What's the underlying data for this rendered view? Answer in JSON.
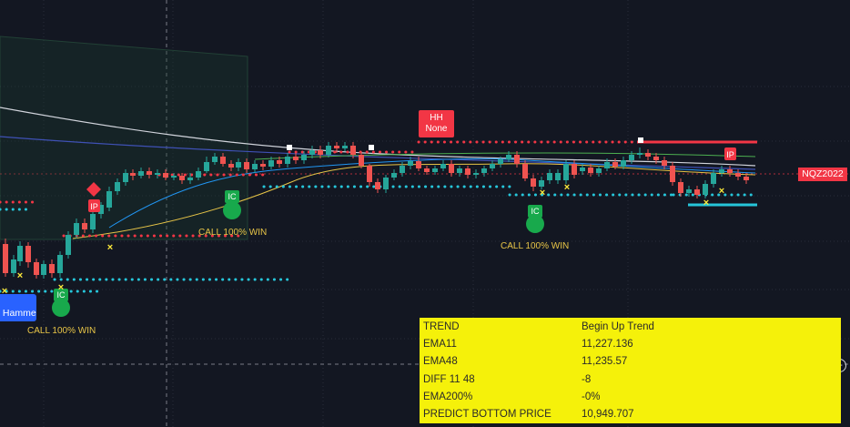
{
  "chart_data": {
    "type": "candlestick",
    "symbol": "NQZ2022",
    "candles": [
      [
        0,
        268,
        300,
        262,
        304,
        "d"
      ],
      [
        1,
        300,
        285,
        280,
        304,
        "u"
      ],
      [
        2,
        287,
        270,
        265,
        292,
        "u"
      ],
      [
        3,
        270,
        288,
        266,
        294,
        "d"
      ],
      [
        4,
        288,
        302,
        284,
        306,
        "d"
      ],
      [
        5,
        302,
        290,
        286,
        306,
        "u"
      ],
      [
        6,
        290,
        300,
        285,
        305,
        "d"
      ],
      [
        7,
        300,
        280,
        276,
        305,
        "u"
      ],
      [
        8,
        280,
        258,
        254,
        284,
        "u"
      ],
      [
        9,
        258,
        245,
        240,
        262,
        "u"
      ],
      [
        10,
        245,
        252,
        240,
        256,
        "d"
      ],
      [
        11,
        252,
        235,
        231,
        256,
        "u"
      ],
      [
        12,
        235,
        225,
        222,
        240,
        "u"
      ],
      [
        13,
        228,
        210,
        205,
        232,
        "u"
      ],
      [
        14,
        210,
        200,
        196,
        214,
        "u"
      ],
      [
        15,
        200,
        190,
        186,
        204,
        "u"
      ],
      [
        16,
        190,
        193,
        186,
        198,
        "d"
      ],
      [
        17,
        193,
        188,
        184,
        196,
        "u"
      ],
      [
        18,
        188,
        192,
        184,
        196,
        "d"
      ],
      [
        19,
        192,
        190,
        186,
        196,
        "u"
      ],
      [
        20,
        190,
        195,
        186,
        198,
        "d"
      ],
      [
        21,
        195,
        193,
        190,
        198,
        "u"
      ],
      [
        22,
        193,
        198,
        190,
        202,
        "d"
      ],
      [
        23,
        198,
        195,
        190,
        202,
        "u"
      ],
      [
        24,
        195,
        188,
        184,
        198,
        "u"
      ],
      [
        25,
        188,
        178,
        172,
        190,
        "u"
      ],
      [
        26,
        178,
        172,
        168,
        181,
        "u"
      ],
      [
        27,
        172,
        180,
        168,
        183,
        "d"
      ],
      [
        28,
        180,
        184,
        176,
        188,
        "d"
      ],
      [
        29,
        184,
        178,
        174,
        188,
        "u"
      ],
      [
        30,
        178,
        186,
        174,
        190,
        "d"
      ],
      [
        31,
        186,
        180,
        176,
        190,
        "u"
      ],
      [
        32,
        180,
        183,
        176,
        187,
        "d"
      ],
      [
        33,
        183,
        176,
        172,
        186,
        "u"
      ],
      [
        34,
        176,
        180,
        172,
        184,
        "d"
      ],
      [
        35,
        180,
        172,
        168,
        184,
        "u"
      ],
      [
        36,
        172,
        176,
        168,
        180,
        "d"
      ],
      [
        37,
        176,
        170,
        166,
        180,
        "u"
      ],
      [
        38,
        170,
        165,
        160,
        174,
        "u"
      ],
      [
        39,
        165,
        170,
        160,
        174,
        "d"
      ],
      [
        40,
        170,
        160,
        156,
        173,
        "u"
      ],
      [
        41,
        160,
        163,
        156,
        168,
        "d"
      ],
      [
        42,
        163,
        160,
        156,
        166,
        "u"
      ],
      [
        43,
        160,
        170,
        156,
        174,
        "d"
      ],
      [
        44,
        170,
        182,
        166,
        185,
        "d"
      ],
      [
        45,
        182,
        200,
        180,
        205,
        "d"
      ],
      [
        46,
        200,
        208,
        196,
        212,
        "d"
      ],
      [
        47,
        208,
        195,
        192,
        212,
        "u"
      ],
      [
        48,
        195,
        190,
        186,
        198,
        "u"
      ],
      [
        49,
        190,
        182,
        178,
        194,
        "u"
      ],
      [
        50,
        182,
        177,
        172,
        186,
        "u"
      ],
      [
        51,
        177,
        185,
        172,
        188,
        "d"
      ],
      [
        52,
        185,
        189,
        182,
        192,
        "d"
      ],
      [
        53,
        189,
        185,
        182,
        192,
        "u"
      ],
      [
        54,
        185,
        180,
        176,
        188,
        "u"
      ],
      [
        55,
        180,
        190,
        176,
        194,
        "d"
      ],
      [
        56,
        190,
        185,
        182,
        194,
        "u"
      ],
      [
        57,
        185,
        192,
        182,
        196,
        "d"
      ],
      [
        58,
        192,
        190,
        186,
        196,
        "u"
      ],
      [
        59,
        190,
        185,
        182,
        194,
        "u"
      ],
      [
        60,
        185,
        180,
        176,
        188,
        "u"
      ],
      [
        61,
        180,
        175,
        172,
        184,
        "u"
      ],
      [
        62,
        175,
        170,
        166,
        178,
        "u"
      ],
      [
        63,
        170,
        180,
        166,
        184,
        "d"
      ],
      [
        64,
        180,
        196,
        176,
        199,
        "d"
      ],
      [
        65,
        196,
        205,
        192,
        210,
        "d"
      ],
      [
        66,
        205,
        198,
        194,
        208,
        "u"
      ],
      [
        67,
        198,
        190,
        186,
        202,
        "u"
      ]
    ],
    "x0": 6,
    "dx": 9.2,
    "labels": {
      "hh": "HH\nNone",
      "hammer": "Hammer",
      "call_win": "CALL 100% WIN",
      "ic": "IC",
      "ip": "IP"
    }
  },
  "info": {
    "rows": [
      {
        "k": "TREND",
        "v": "Begin Up Trend"
      },
      {
        "k": "EMA11",
        "v": "11,227.136"
      },
      {
        "k": "EMA48",
        "v": "11,235.57"
      },
      {
        "k": "DIFF 11 48",
        "v": "-8"
      },
      {
        "k": "EMA200%",
        "v": "-0%"
      },
      {
        "k": "PREDICT BOTTOM PRICE",
        "v": "10,949.707"
      }
    ]
  },
  "price_tag": "NQZ2022",
  "colors": {
    "up": "#26a69a",
    "down": "#ef5350",
    "bg": "#131722"
  }
}
